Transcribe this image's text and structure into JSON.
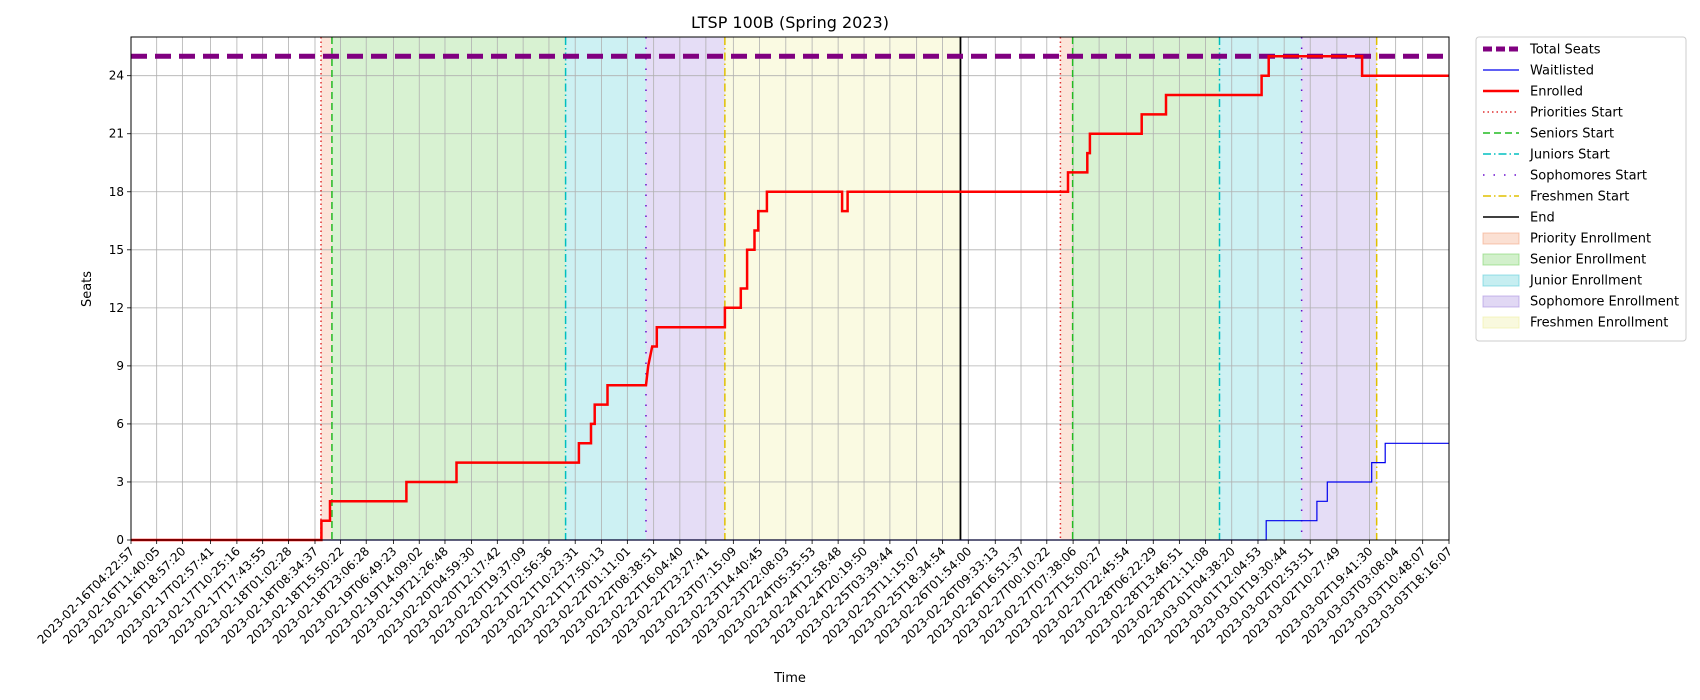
{
  "chart_data": {
    "type": "line",
    "title": "LTSP 100B (Spring 2023)",
    "xlabel": "Time",
    "ylabel": "Seats",
    "x_range": [
      "2023-02-16T04:22:57",
      "2023-03-03T18:16:07"
    ],
    "ylim": [
      0,
      26
    ],
    "yticks": [
      0,
      3,
      6,
      9,
      12,
      15,
      18,
      21,
      24
    ],
    "grid": true,
    "legend_position": "outside-right",
    "x_tick_labels": [
      "2023-02-16T04:22:57",
      "2023-02-16T11:40:05",
      "2023-02-16T18:57:20",
      "2023-02-17T02:57:41",
      "2023-02-17T10:25:16",
      "2023-02-17T17:43:55",
      "2023-02-18T01:02:28",
      "2023-02-18T08:34:37",
      "2023-02-18T15:50:22",
      "2023-02-18T23:06:28",
      "2023-02-19T06:49:23",
      "2023-02-19T14:09:02",
      "2023-02-19T21:26:48",
      "2023-02-20T04:59:30",
      "2023-02-20T12:17:42",
      "2023-02-20T19:37:09",
      "2023-02-21T02:56:36",
      "2023-02-21T10:23:31",
      "2023-02-21T17:50:13",
      "2023-02-22T01:11:01",
      "2023-02-22T08:38:51",
      "2023-02-22T16:04:40",
      "2023-02-22T23:27:41",
      "2023-02-23T07:15:09",
      "2023-02-23T14:40:45",
      "2023-02-23T22:08:03",
      "2023-02-24T05:35:53",
      "2023-02-24T12:58:48",
      "2023-02-24T20:19:50",
      "2023-02-25T03:39:44",
      "2023-02-25T11:15:07",
      "2023-02-25T18:34:54",
      "2023-02-26T01:54:00",
      "2023-02-26T09:33:13",
      "2023-02-26T16:51:37",
      "2023-02-27T00:10:22",
      "2023-02-27T07:38:06",
      "2023-02-27T15:00:27",
      "2023-02-27T22:45:54",
      "2023-02-28T06:22:29",
      "2023-02-28T13:46:51",
      "2023-02-28T21:11:08",
      "2023-03-01T04:38:20",
      "2023-03-01T12:04:53",
      "2023-03-01T19:30:44",
      "2023-03-02T02:53:51",
      "2023-03-02T10:27:49",
      "2023-03-02T19:41:30",
      "2023-03-03T03:08:04",
      "2023-03-03T10:48:07",
      "2023-03-03T18:16:07"
    ],
    "phases": [
      {
        "name": "Priority Enrollment",
        "color": "#f4a582",
        "start": "2023-02-18T10:17:00",
        "end": "2023-02-18T13:23:00"
      },
      {
        "name": "Senior Enrollment",
        "color": "#7fd36a",
        "start": "2023-02-18T13:23:00",
        "end": "2023-02-21T07:40:00"
      },
      {
        "name": "Junior Enrollment",
        "color": "#5bcfd8",
        "start": "2023-02-21T07:40:00",
        "end": "2023-02-22T06:28:00"
      },
      {
        "name": "Sophomore Enrollment",
        "color": "#a98ee0",
        "start": "2023-02-22T06:28:00",
        "end": "2023-02-23T04:51:00"
      },
      {
        "name": "Freshmen Enrollment",
        "color": "#eeeea0",
        "start": "2023-02-23T04:51:00",
        "end": "2023-02-25T23:41:00"
      },
      {
        "name": "Priority Enrollment",
        "color": "#f4a582",
        "start": "2023-02-27T04:02:00",
        "end": "2023-02-27T07:30:00"
      },
      {
        "name": "Senior Enrollment",
        "color": "#7fd36a",
        "start": "2023-02-27T07:30:00",
        "end": "2023-03-01T01:10:00"
      },
      {
        "name": "Junior Enrollment",
        "color": "#5bcfd8",
        "start": "2023-03-01T01:10:00",
        "end": "2023-03-02T00:28:00"
      },
      {
        "name": "Sophomore Enrollment",
        "color": "#a98ee0",
        "start": "2023-03-02T00:28:00",
        "end": "2023-03-02T21:45:00"
      }
    ],
    "markers": [
      {
        "name": "Priorities Start",
        "color": "#e03030",
        "style": "dotted",
        "x": "2023-02-18T10:17:00"
      },
      {
        "name": "Seniors Start",
        "color": "#22bb22",
        "style": "dashed",
        "x": "2023-02-18T13:23:00"
      },
      {
        "name": "Juniors Start",
        "color": "#00bfc0",
        "style": "dashdot",
        "x": "2023-02-21T07:40:00"
      },
      {
        "name": "Sophomores Start",
        "color": "#6a0dcd",
        "style": "sparse",
        "x": "2023-02-22T06:28:00"
      },
      {
        "name": "Freshmen Start",
        "color": "#e0c000",
        "style": "dashdot",
        "x": "2023-02-23T04:51:00"
      },
      {
        "name": "End",
        "color": "#000000",
        "style": "solid",
        "x": "2023-02-25T23:41:00"
      },
      {
        "name": "Priorities Start",
        "color": "#e03030",
        "style": "dotted",
        "x": "2023-02-27T04:02:00"
      },
      {
        "name": "Seniors Start",
        "color": "#22bb22",
        "style": "dashed",
        "x": "2023-02-27T07:30:00"
      },
      {
        "name": "Juniors Start",
        "color": "#00bfc0",
        "style": "dashdot",
        "x": "2023-03-01T01:10:00"
      },
      {
        "name": "Sophomores Start",
        "color": "#6a0dcd",
        "style": "sparse",
        "x": "2023-03-02T00:28:00"
      },
      {
        "name": "Freshmen Start",
        "color": "#e0c000",
        "style": "dashdot",
        "x": "2023-03-02T21:45:00"
      }
    ],
    "series": [
      {
        "name": "Total Seats",
        "color": "#800080",
        "style": "dashed-thick",
        "points": [
          [
            "2023-02-16T04:22:57",
            25
          ],
          [
            "2023-03-03T18:16:07",
            25
          ]
        ]
      },
      {
        "name": "Waitlisted",
        "color": "#0000ee",
        "style": "thin",
        "points": [
          [
            "2023-02-16T04:22:57",
            0
          ],
          [
            "2023-03-01T14:24:00",
            0
          ],
          [
            "2023-03-01T14:24:00",
            1
          ],
          [
            "2023-03-02T04:47:00",
            1
          ],
          [
            "2023-03-02T04:47:00",
            2
          ],
          [
            "2023-03-02T07:44:00",
            2
          ],
          [
            "2023-03-02T07:44:00",
            3
          ],
          [
            "2023-03-02T20:20:00",
            3
          ],
          [
            "2023-03-02T20:20:00",
            4
          ],
          [
            "2023-03-03T00:10:00",
            4
          ],
          [
            "2023-03-03T00:10:00",
            5
          ],
          [
            "2023-03-03T18:16:07",
            5
          ]
        ]
      },
      {
        "name": "Enrolled",
        "color": "#ff0000",
        "style": "thick",
        "points": [
          [
            "2023-02-16T04:22:57",
            0
          ],
          [
            "2023-02-18T10:24:00",
            0
          ],
          [
            "2023-02-18T10:24:00",
            1
          ],
          [
            "2023-02-18T12:50:00",
            1
          ],
          [
            "2023-02-18T12:50:00",
            2
          ],
          [
            "2023-02-19T10:31:00",
            2
          ],
          [
            "2023-02-19T10:31:00",
            3
          ],
          [
            "2023-02-20T00:43:00",
            3
          ],
          [
            "2023-02-20T00:43:00",
            4
          ],
          [
            "2023-02-21T11:26:00",
            4
          ],
          [
            "2023-02-21T11:26:00",
            5
          ],
          [
            "2023-02-21T14:52:00",
            5
          ],
          [
            "2023-02-21T14:52:00",
            6
          ],
          [
            "2023-02-21T15:55:00",
            6
          ],
          [
            "2023-02-21T15:55:00",
            7
          ],
          [
            "2023-02-21T19:33:00",
            7
          ],
          [
            "2023-02-21T19:33:00",
            8
          ],
          [
            "2023-02-22T06:28:00",
            8
          ],
          [
            "2023-02-22T07:06:00",
            9
          ],
          [
            "2023-02-22T08:14:00",
            10
          ],
          [
            "2023-02-22T09:32:00",
            10
          ],
          [
            "2023-02-22T09:32:00",
            11
          ],
          [
            "2023-02-23T04:51:00",
            11
          ],
          [
            "2023-02-23T04:51:00",
            12
          ],
          [
            "2023-02-23T09:22:00",
            12
          ],
          [
            "2023-02-23T09:22:00",
            13
          ],
          [
            "2023-02-23T11:10:00",
            13
          ],
          [
            "2023-02-23T11:10:00",
            15
          ],
          [
            "2023-02-23T13:15:00",
            15
          ],
          [
            "2023-02-23T13:15:00",
            16
          ],
          [
            "2023-02-23T14:19:00",
            16
          ],
          [
            "2023-02-23T14:19:00",
            17
          ],
          [
            "2023-02-23T16:46:00",
            17
          ],
          [
            "2023-02-23T16:46:00",
            18
          ],
          [
            "2023-02-24T14:06:00",
            18
          ],
          [
            "2023-02-24T14:06:00",
            17
          ],
          [
            "2023-02-24T15:40:00",
            17
          ],
          [
            "2023-02-24T15:40:00",
            18
          ],
          [
            "2023-02-27T06:12:00",
            18
          ],
          [
            "2023-02-27T06:12:00",
            19
          ],
          [
            "2023-02-27T11:40:00",
            19
          ],
          [
            "2023-02-27T11:40:00",
            20
          ],
          [
            "2023-02-27T12:24:00",
            20
          ],
          [
            "2023-02-27T12:24:00",
            21
          ],
          [
            "2023-02-28T03:06:00",
            21
          ],
          [
            "2023-02-28T03:06:00",
            22
          ],
          [
            "2023-02-28T09:59:00",
            22
          ],
          [
            "2023-02-28T09:59:00",
            23
          ],
          [
            "2023-03-01T13:06:00",
            23
          ],
          [
            "2023-03-01T13:06:00",
            24
          ],
          [
            "2023-03-01T15:08:00",
            24
          ],
          [
            "2023-03-01T15:08:00",
            25
          ],
          [
            "2023-03-02T17:37:00",
            25
          ],
          [
            "2023-03-02T17:37:00",
            24
          ],
          [
            "2023-03-03T18:16:07",
            24
          ]
        ]
      }
    ],
    "legend": [
      {
        "label": "Total Seats",
        "kind": "line",
        "color": "#800080",
        "style": "dashed-thick"
      },
      {
        "label": "Waitlisted",
        "kind": "line",
        "color": "#0000ee",
        "style": "thin"
      },
      {
        "label": "Enrolled",
        "kind": "line",
        "color": "#ff0000",
        "style": "thick"
      },
      {
        "label": "Priorities Start",
        "kind": "line",
        "color": "#e03030",
        "style": "dotted"
      },
      {
        "label": "Seniors Start",
        "kind": "line",
        "color": "#22bb22",
        "style": "dashed"
      },
      {
        "label": "Juniors Start",
        "kind": "line",
        "color": "#00bfc0",
        "style": "dashdot"
      },
      {
        "label": "Sophomores Start",
        "kind": "line",
        "color": "#6a0dcd",
        "style": "sparse"
      },
      {
        "label": "Freshmen Start",
        "kind": "line",
        "color": "#e0c000",
        "style": "dashdot"
      },
      {
        "label": "End",
        "kind": "line",
        "color": "#000000",
        "style": "solid"
      },
      {
        "label": "Priority Enrollment",
        "kind": "patch",
        "color": "#f4a582"
      },
      {
        "label": "Senior Enrollment",
        "kind": "patch",
        "color": "#7fd36a"
      },
      {
        "label": "Junior Enrollment",
        "kind": "patch",
        "color": "#5bcfd8"
      },
      {
        "label": "Sophomore Enrollment",
        "kind": "patch",
        "color": "#a98ee0"
      },
      {
        "label": "Freshmen Enrollment",
        "kind": "patch",
        "color": "#eeeea0"
      }
    ]
  }
}
